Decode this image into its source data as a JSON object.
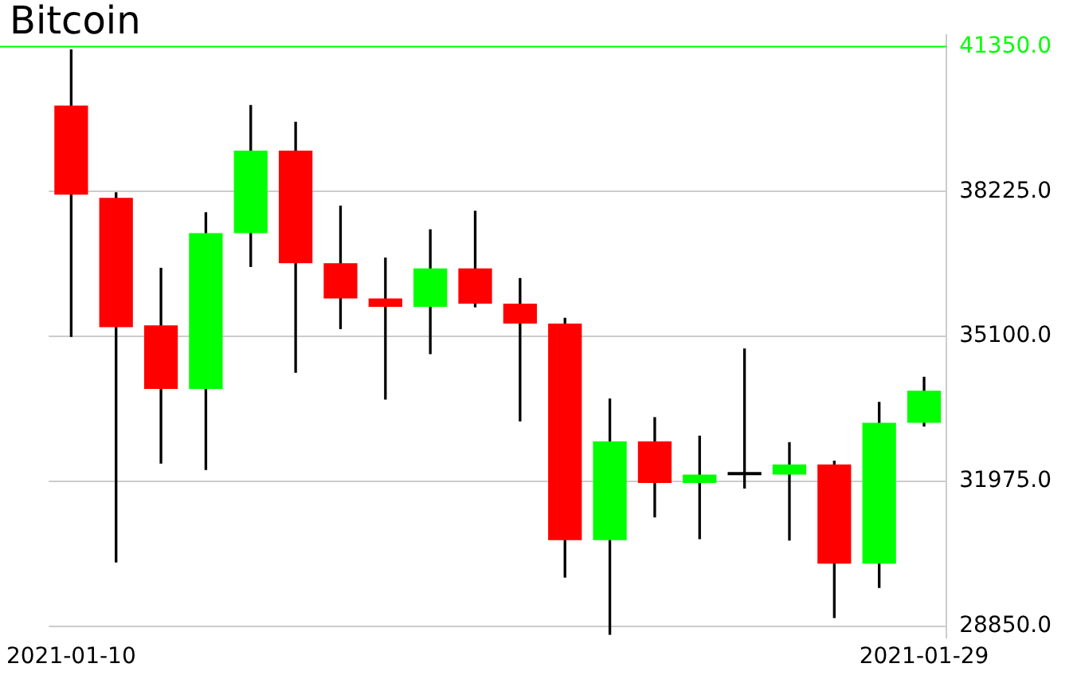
{
  "chart_data": {
    "type": "candlestick",
    "title": "Bitcoin",
    "categories": [
      "2021-01-10",
      null,
      null,
      null,
      null,
      null,
      null,
      null,
      null,
      null,
      null,
      null,
      null,
      null,
      null,
      null,
      null,
      null,
      null,
      "2021-01-29"
    ],
    "ohlc": [
      [
        40080,
        41280,
        35100,
        38160
      ],
      [
        38090,
        38200,
        30240,
        35300
      ],
      [
        35340,
        36570,
        32370,
        33970
      ],
      [
        33970,
        37770,
        32230,
        37330
      ],
      [
        37330,
        40080,
        36610,
        39110
      ],
      [
        39110,
        39720,
        34330,
        36680
      ],
      [
        36680,
        37910,
        35270,
        35920
      ],
      [
        35920,
        36790,
        33750,
        35740
      ],
      [
        35740,
        37400,
        34730,
        36570
      ],
      [
        36570,
        37800,
        35740,
        35810
      ],
      [
        35810,
        36350,
        33280,
        35380
      ],
      [
        35380,
        35490,
        29910,
        30710
      ],
      [
        30710,
        33750,
        28680,
        32840
      ],
      [
        32840,
        33350,
        31210,
        31940
      ],
      [
        31940,
        32950,
        30740,
        32120
      ],
      [
        32110,
        34830,
        31830,
        32130
      ],
      [
        32120,
        32810,
        30710,
        32340
      ],
      [
        32340,
        32410,
        29040,
        30200
      ],
      [
        30200,
        33680,
        29690,
        33240
      ],
      [
        33240,
        34220,
        33170,
        33930
      ]
    ],
    "colors": [
      "#ff0000",
      "#ff0000",
      "#ff0000",
      "#00ff00",
      "#00ff00",
      "#ff0000",
      "#ff0000",
      "#ff0000",
      "#00ff00",
      "#ff0000",
      "#ff0000",
      "#ff0000",
      "#00ff00",
      "#ff0000",
      "#00ff00",
      "#000000",
      "#00ff00",
      "#ff0000",
      "#00ff00",
      "#00ff00"
    ],
    "ylim": [
      28600,
      41600
    ],
    "yticks": [
      {
        "value": 28850,
        "label": "28850.0"
      },
      {
        "value": 31975,
        "label": "31975.0"
      },
      {
        "value": 35100,
        "label": "35100.0"
      },
      {
        "value": 38225,
        "label": "38225.0"
      }
    ],
    "ref_lines": [
      {
        "axis": "y",
        "value": 41350,
        "label": "41350.0",
        "color": "#00ff00"
      }
    ],
    "grid": "y"
  }
}
